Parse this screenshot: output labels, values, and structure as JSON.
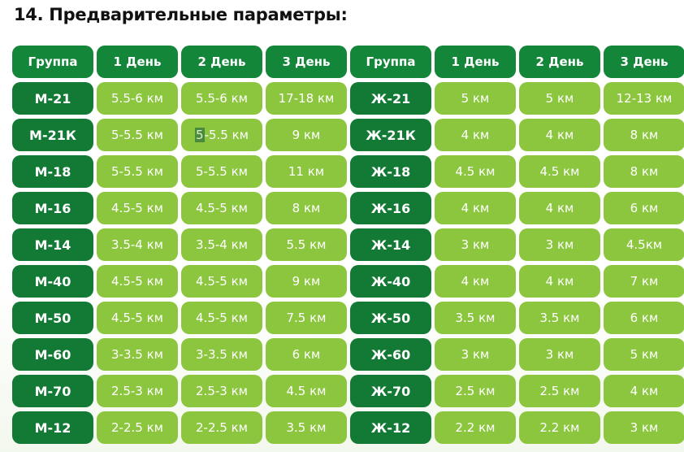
{
  "title": "14. Предварительные параметры:",
  "headers": [
    "Группа",
    "1 День",
    "2 День",
    "3 День",
    "Группа",
    "1 День",
    "2 День",
    "3 День"
  ],
  "rows": [
    {
      "m_group": "М-21",
      "m": [
        "5.5-6 км",
        "5.5-6 км",
        "17-18 км"
      ],
      "w_group": "Ж-21",
      "w": [
        "5 км",
        "5 км",
        "12-13 км"
      ]
    },
    {
      "m_group": "М-21К",
      "m": [
        "5-5.5 км",
        "5-5.5 км",
        "9 км"
      ],
      "w_group": "Ж-21К",
      "w": [
        "4 км",
        "4 км",
        "8 км"
      ]
    },
    {
      "m_group": "М-18",
      "m": [
        "5-5.5 км",
        "5-5.5 км",
        "11 км"
      ],
      "w_group": "Ж-18",
      "w": [
        "4.5 км",
        "4.5 км",
        "8 км"
      ]
    },
    {
      "m_group": "М-16",
      "m": [
        "4.5-5 км",
        "4.5-5 км",
        "8 км"
      ],
      "w_group": "Ж-16",
      "w": [
        "4 км",
        "4 км",
        "6 км"
      ]
    },
    {
      "m_group": "М-14",
      "m": [
        "3.5-4 км",
        "3.5-4 км",
        "5.5 км"
      ],
      "w_group": "Ж-14",
      "w": [
        "3 км",
        "3 км",
        "4.5км"
      ]
    },
    {
      "m_group": "М-40",
      "m": [
        "4.5-5 км",
        "4.5-5 км",
        "9 км"
      ],
      "w_group": "Ж-40",
      "w": [
        "4 км",
        "4 км",
        "7 км"
      ]
    },
    {
      "m_group": "М-50",
      "m": [
        "4.5-5 км",
        "4.5-5 км",
        "7.5 км"
      ],
      "w_group": "Ж-50",
      "w": [
        "3.5 км",
        "3.5 км",
        "6 км"
      ]
    },
    {
      "m_group": "М-60",
      "m": [
        "3-3.5 км",
        "3-3.5 км",
        "6 км"
      ],
      "w_group": "Ж-60",
      "w": [
        "3 км",
        "3 км",
        "5 км"
      ]
    },
    {
      "m_group": "М-70",
      "m": [
        "2.5-3 км",
        "2.5-3 км",
        "4.5 км"
      ],
      "w_group": "Ж-70",
      "w": [
        "2.5 км",
        "2.5 км",
        "4 км"
      ]
    },
    {
      "m_group": "М-12",
      "m": [
        "2-2.5 км",
        "2-2.5 км",
        "3.5 км"
      ],
      "w_group": "Ж-12",
      "w": [
        "2.2 км",
        "2.2 км",
        "3 км"
      ]
    }
  ],
  "colors": {
    "header_bg": "#13863a",
    "group_bg": "#137a35",
    "value_bg": "#8cc63f",
    "text_light": "#ffffff",
    "selection": "#4a8a3c"
  },
  "selection": {
    "row": 1,
    "col": 2,
    "text": "5"
  }
}
